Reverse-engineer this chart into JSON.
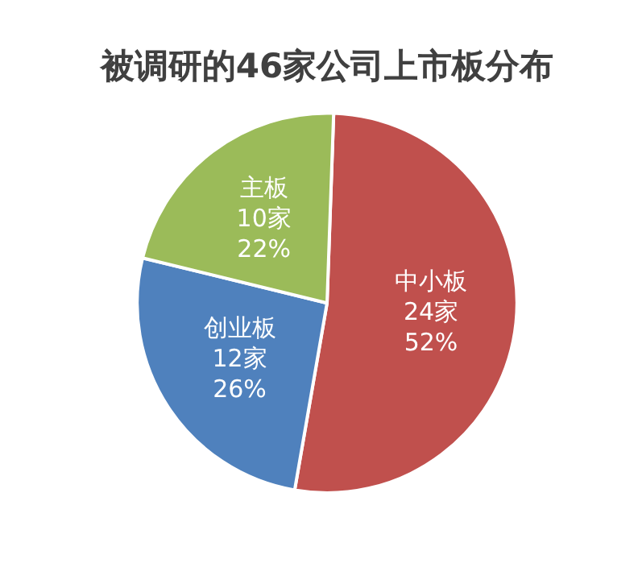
{
  "chart_data": {
    "type": "pie",
    "title": "被调研的46家公司上市板分布",
    "categories": [
      "中小板",
      "创业板",
      "主板"
    ],
    "values": [
      24,
      12,
      10
    ],
    "value_labels": [
      "24家\n52%",
      "12家\n26%",
      "10家\n22%"
    ],
    "colors": [
      "#c0504d",
      "#4f81bd",
      "#9bbb59"
    ],
    "legend": false
  }
}
